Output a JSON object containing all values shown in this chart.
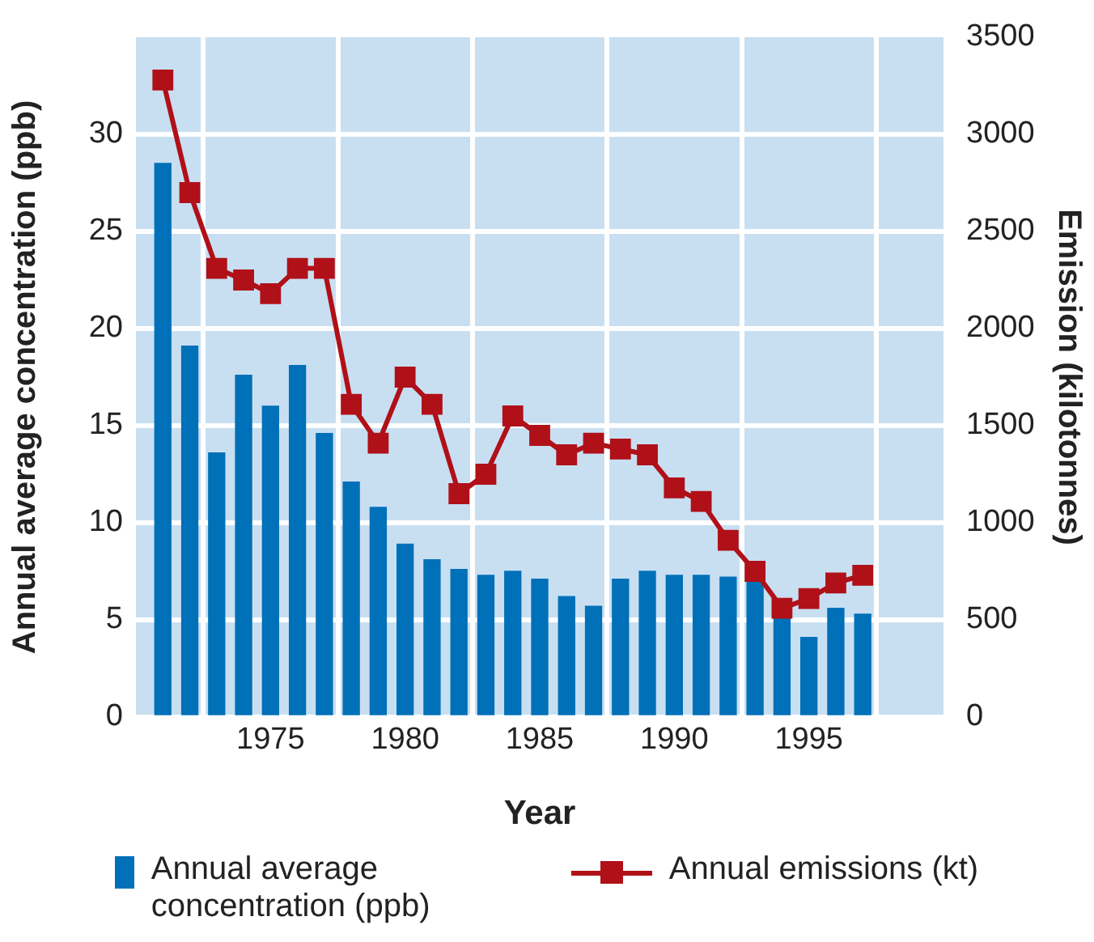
{
  "chart_data": {
    "type": "bar",
    "xlabel": "Year",
    "ylabel": "Annual average concentration (ppb)",
    "y2label": "Emission (kilotonnes)",
    "x": [
      1971,
      1972,
      1973,
      1974,
      1975,
      1976,
      1977,
      1978,
      1979,
      1980,
      1981,
      1982,
      1983,
      1984,
      1985,
      1986,
      1987,
      1988,
      1989,
      1990,
      1991,
      1992,
      1993,
      1994,
      1995,
      1996,
      1997
    ],
    "series": [
      {
        "name": "Annual average concentration (ppb)",
        "color": "#0070b8",
        "values": [
          28.5,
          19.1,
          13.6,
          17.6,
          16.0,
          18.1,
          14.6,
          12.1,
          10.8,
          8.9,
          8.1,
          7.6,
          7.3,
          7.5,
          7.1,
          6.2,
          5.7,
          7.1,
          7.5,
          7.3,
          7.3,
          7.2,
          7.2,
          5.2,
          4.1,
          5.6,
          5.3
        ]
      },
      {
        "name": "Annual emissions (kt)",
        "type": "line",
        "axis": "y2",
        "color": "#b01018",
        "marker": "square",
        "values": [
          3280,
          2700,
          2310,
          2250,
          2180,
          2310,
          2310,
          1610,
          1410,
          1750,
          1610,
          1150,
          1250,
          1550,
          1450,
          1350,
          1410,
          1380,
          1350,
          1180,
          1110,
          910,
          750,
          560,
          610,
          690,
          730
        ]
      }
    ],
    "xlim": [
      1970,
      2000
    ],
    "xticks": [
      1975,
      1980,
      1985,
      1990,
      1995
    ],
    "ylim": [
      0,
      35
    ],
    "yticks": [
      0,
      5,
      10,
      15,
      20,
      25,
      30
    ],
    "y2lim": [
      0,
      3500
    ],
    "y2ticks": [
      0,
      500,
      1000,
      1500,
      2000,
      2500,
      3000,
      3500
    ],
    "grid": true,
    "legend": "bottom"
  }
}
